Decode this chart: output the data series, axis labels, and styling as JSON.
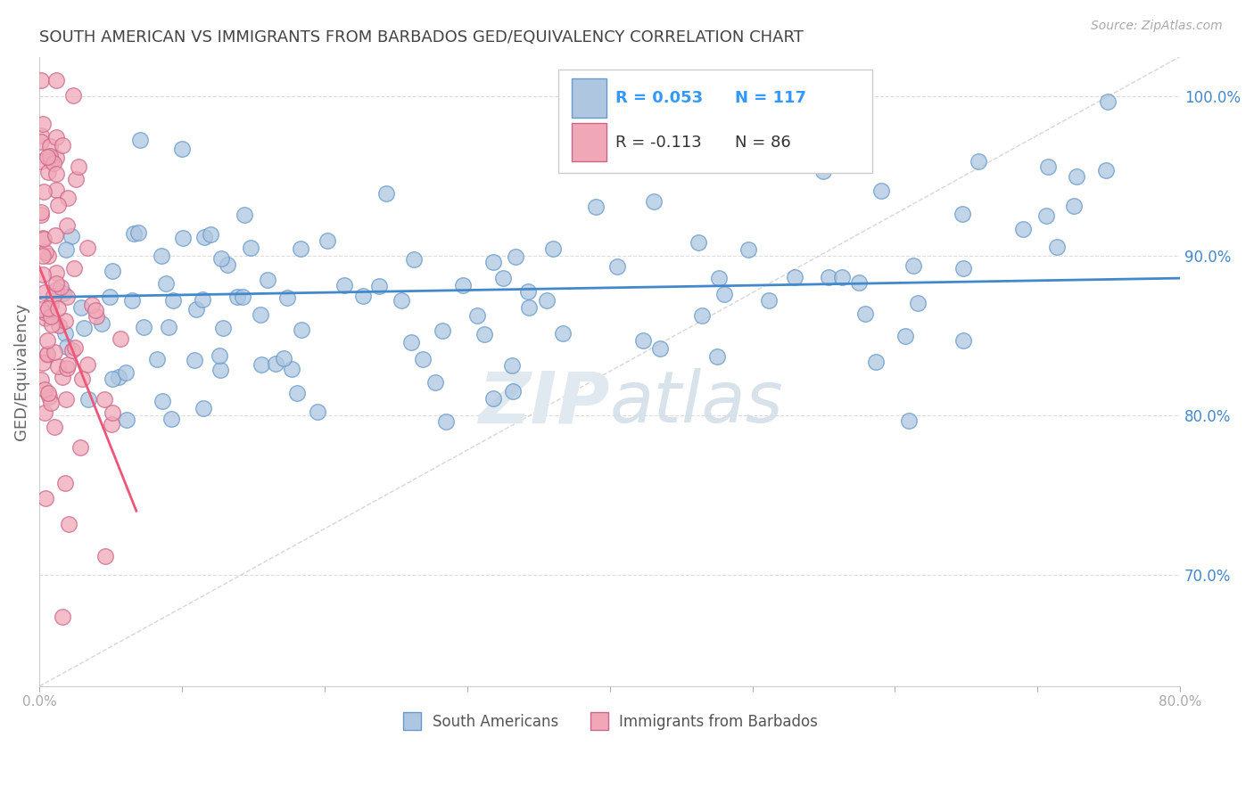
{
  "title": "SOUTH AMERICAN VS IMMIGRANTS FROM BARBADOS GED/EQUIVALENCY CORRELATION CHART",
  "source_text": "Source: ZipAtlas.com",
  "ylabel": "GED/Equivalency",
  "xmin": 0.0,
  "xmax": 0.8,
  "ymin": 0.63,
  "ymax": 1.025,
  "R_blue": 0.053,
  "N_blue": 117,
  "R_pink": -0.113,
  "N_pink": 86,
  "legend_labels": [
    "South Americans",
    "Immigrants from Barbados"
  ],
  "blue_color": "#aec6e0",
  "blue_edge": "#6699cc",
  "pink_color": "#f0a8b8",
  "pink_edge": "#cc6688",
  "blue_line_color": "#4488cc",
  "pink_line_color": "#ee5577",
  "identity_line_color": "#cccccc",
  "title_color": "#444444",
  "legend_R_color_blue": "#3399ff",
  "legend_N_color_blue": "#3399ff",
  "axis_tick_color": "#4488cc",
  "watermark_color": "#e0e8f0"
}
